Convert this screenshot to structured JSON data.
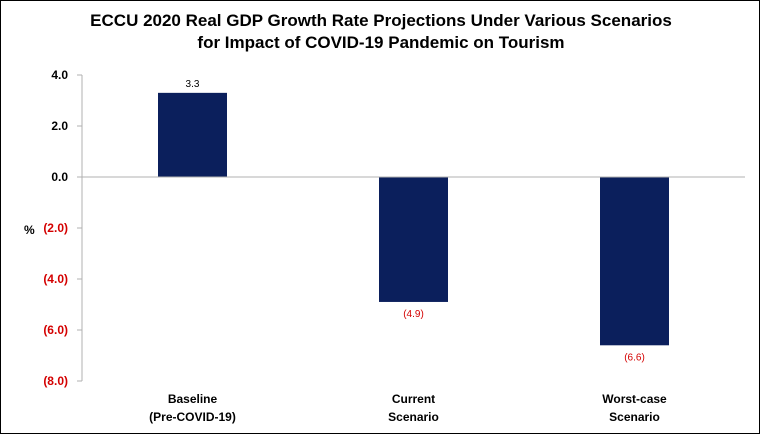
{
  "chart_data": {
    "type": "bar",
    "title_line1": "ECCU 2020 Real GDP Growth Rate Projections Under Various Scenarios",
    "title_line2": "for Impact of COVID-19 Pandemic on Tourism",
    "ylabel": "%",
    "ylim": [
      -8.0,
      4.0
    ],
    "yticks": [
      4.0,
      2.0,
      0.0,
      -2.0,
      -4.0,
      -6.0,
      -8.0
    ],
    "ytick_labels": [
      "4.0",
      "2.0",
      "0.0",
      "(2.0)",
      "(4.0)",
      "(6.0)",
      "(8.0)"
    ],
    "categories": [
      [
        "Baseline",
        "(Pre-COVID-19)"
      ],
      [
        "Current",
        "Scenario"
      ],
      [
        "Worst-case",
        "Scenario"
      ]
    ],
    "values": [
      3.3,
      -4.9,
      -6.6
    ],
    "data_labels": [
      "3.3",
      "(4.9)",
      "(6.6)"
    ],
    "colors": {
      "bar": "#0b1f5c",
      "negative_text": "#d40000",
      "positive_text": "#000000",
      "axis": "#b0b0b0"
    }
  }
}
